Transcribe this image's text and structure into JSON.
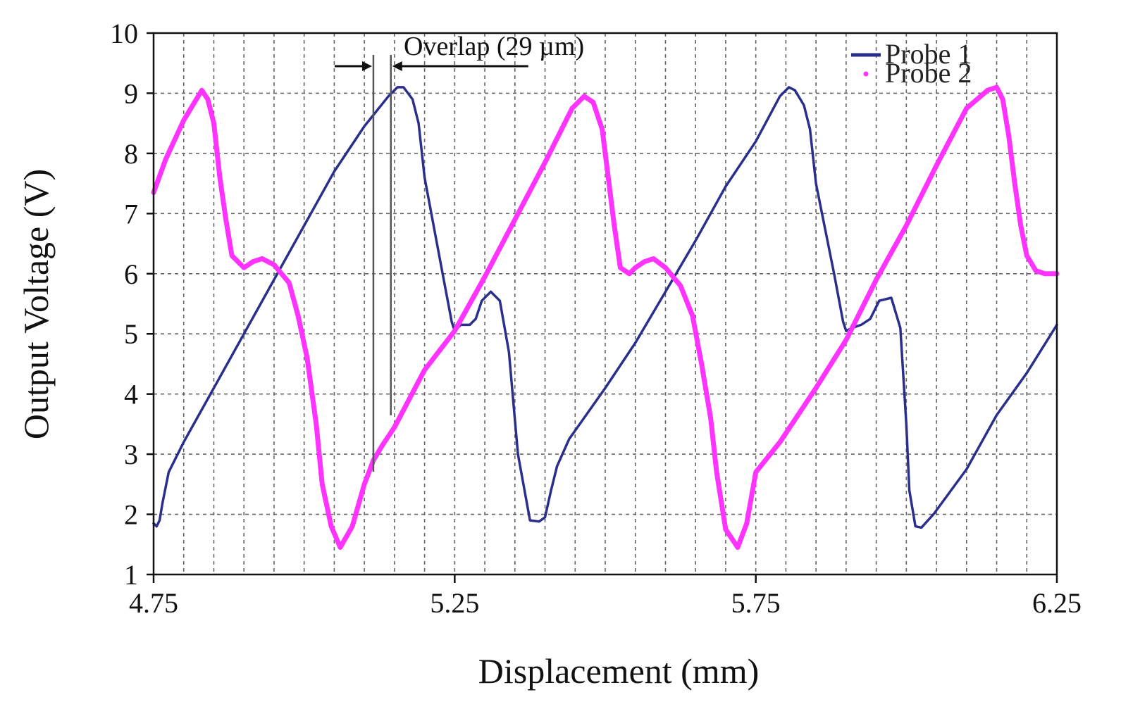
{
  "chart_data": {
    "type": "line",
    "title": "",
    "xlabel": "Displacement (mm)",
    "ylabel": "Output Voltage (V)",
    "xlim": [
      4.75,
      6.25
    ],
    "ylim": [
      1,
      10
    ],
    "x_ticks": [
      "4.75",
      "5.25",
      "5.75",
      "6.25"
    ],
    "x_tick_values": [
      4.75,
      5.25,
      5.75,
      6.25
    ],
    "y_ticks": [
      "1",
      "2",
      "3",
      "4",
      "5",
      "6",
      "7",
      "8",
      "9",
      "10"
    ],
    "y_tick_values": [
      1,
      2,
      3,
      4,
      5,
      6,
      7,
      8,
      9,
      10
    ],
    "grid": true,
    "x_grid_step": 0.05,
    "legend_position": "top-right",
    "annotation": {
      "text": "Overlap (29 µm)",
      "x_start": 5.115,
      "x_end": 5.144
    },
    "series": [
      {
        "name": "Probe 1",
        "color": "#2b2f8c",
        "x": [
          4.75,
          4.755,
          4.76,
          4.765,
          4.775,
          4.8,
          4.85,
          4.9,
          4.95,
          5.0,
          5.05,
          5.1,
          5.14,
          5.155,
          5.165,
          5.18,
          5.19,
          5.2,
          5.23,
          5.245,
          5.25,
          5.26,
          5.275,
          5.285,
          5.295,
          5.31,
          5.325,
          5.34,
          5.355,
          5.375,
          5.39,
          5.4,
          5.41,
          5.42,
          5.44,
          5.5,
          5.55,
          5.6,
          5.65,
          5.7,
          5.75,
          5.79,
          5.805,
          5.815,
          5.83,
          5.84,
          5.85,
          5.88,
          5.895,
          5.9,
          5.91,
          5.925,
          5.94,
          5.955,
          5.975,
          5.99,
          6.0,
          6.005,
          6.015,
          6.025,
          6.045,
          6.1,
          6.15,
          6.2,
          6.25
        ],
        "y": [
          1.85,
          1.8,
          1.9,
          2.2,
          2.7,
          3.2,
          4.1,
          5.0,
          5.9,
          6.8,
          7.7,
          8.45,
          8.95,
          9.1,
          9.1,
          8.9,
          8.5,
          7.6,
          6.0,
          5.2,
          5.05,
          5.15,
          5.15,
          5.25,
          5.55,
          5.7,
          5.55,
          4.7,
          3.0,
          1.9,
          1.88,
          1.95,
          2.4,
          2.8,
          3.25,
          4.1,
          4.85,
          5.7,
          6.55,
          7.45,
          8.2,
          8.95,
          9.1,
          9.05,
          8.8,
          8.4,
          7.5,
          6.0,
          5.2,
          5.05,
          5.1,
          5.15,
          5.25,
          5.55,
          5.6,
          5.1,
          3.5,
          2.4,
          1.8,
          1.78,
          2.0,
          2.75,
          3.65,
          4.35,
          5.15
        ]
      },
      {
        "name": "Probe 2",
        "color": "#ff33ff",
        "x": [
          4.75,
          4.77,
          4.8,
          4.83,
          4.84,
          4.85,
          4.86,
          4.87,
          4.88,
          4.9,
          4.915,
          4.93,
          4.95,
          4.975,
          4.99,
          5.005,
          5.02,
          5.03,
          5.045,
          5.06,
          5.08,
          5.1,
          5.115,
          5.13,
          5.15,
          5.2,
          5.25,
          5.3,
          5.35,
          5.4,
          5.445,
          5.465,
          5.48,
          5.495,
          5.505,
          5.515,
          5.525,
          5.54,
          5.55,
          5.565,
          5.58,
          5.6,
          5.625,
          5.645,
          5.66,
          5.675,
          5.685,
          5.7,
          5.72,
          5.735,
          5.75,
          5.79,
          5.85,
          5.9,
          5.95,
          6.0,
          6.05,
          6.1,
          6.135,
          6.15,
          6.16,
          6.17,
          6.18,
          6.19,
          6.2,
          6.215,
          6.23,
          6.25
        ],
        "y": [
          7.35,
          7.9,
          8.55,
          9.05,
          8.9,
          8.5,
          7.6,
          6.9,
          6.3,
          6.1,
          6.2,
          6.25,
          6.15,
          5.85,
          5.3,
          4.6,
          3.5,
          2.5,
          1.8,
          1.45,
          1.8,
          2.5,
          2.9,
          3.15,
          3.45,
          4.4,
          5.05,
          5.95,
          6.9,
          7.85,
          8.75,
          8.95,
          8.85,
          8.4,
          7.6,
          6.8,
          6.1,
          6.0,
          6.1,
          6.2,
          6.25,
          6.1,
          5.8,
          5.3,
          4.5,
          3.6,
          2.7,
          1.75,
          1.45,
          1.85,
          2.7,
          3.2,
          4.1,
          4.9,
          5.9,
          6.8,
          7.8,
          8.75,
          9.05,
          9.1,
          8.9,
          8.3,
          7.5,
          6.8,
          6.3,
          6.05,
          6.0,
          6.0
        ]
      }
    ]
  }
}
